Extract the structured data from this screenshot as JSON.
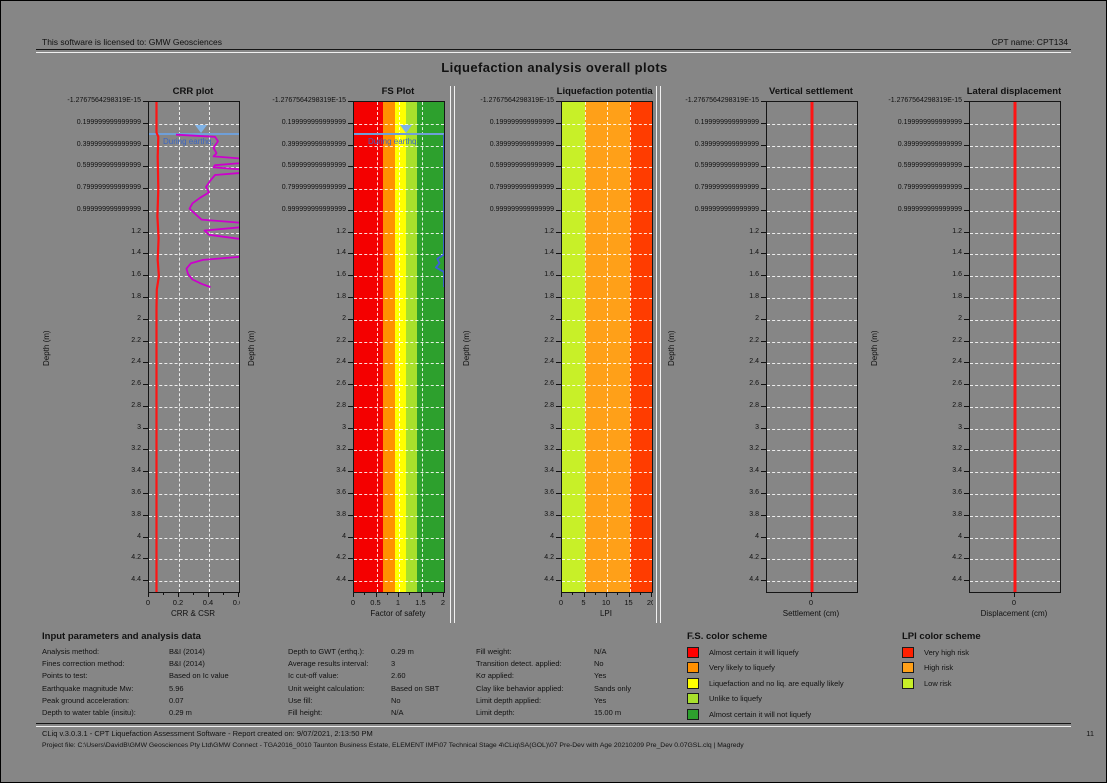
{
  "header": {
    "license": "This software is licensed to: GMW Geosciences",
    "cpt_name": "CPT name: CPT134"
  },
  "title": "Liquefaction analysis overall plots",
  "depth_axis": {
    "label": "Depth (m)",
    "max_depth": 4.5,
    "ticks": [
      "-1.2767564298319E-15",
      "0.199999999999999",
      "0.399999999999999",
      "0.599999999999999",
      "0.799999999999999",
      "0.999999999999999",
      "1.2",
      "1.4",
      "1.6",
      "1.8",
      "2",
      "2.2",
      "2.4",
      "2.6",
      "2.8",
      "3",
      "3.2",
      "3.4",
      "3.6",
      "3.8",
      "4",
      "4.2",
      "4.4"
    ]
  },
  "plots": [
    {
      "key": "crr",
      "title": "CRR plot",
      "xlabel": "CRR & CSR",
      "xmin": 0,
      "xmax": 0.6,
      "xticks": [
        {
          "v": 0,
          "label": "0"
        },
        {
          "v": 0.2,
          "label": "0.2"
        },
        {
          "v": 0.4,
          "label": "0.4"
        },
        {
          "v": 0.6,
          "label": "0.6"
        }
      ],
      "vgrid": [
        0.2,
        0.4
      ],
      "bands": [],
      "water": {
        "depth": 0.29,
        "label": "During earthq."
      },
      "series": [
        {
          "name": "CSR",
          "color": "#ff1414",
          "width": 2.2,
          "points": [
            [
              0,
              0.05
            ],
            [
              0.28,
              0.05
            ],
            [
              0.32,
              0.062
            ],
            [
              0.5,
              0.058
            ],
            [
              0.8,
              0.062
            ],
            [
              1.05,
              0.056
            ],
            [
              1.25,
              0.064
            ],
            [
              1.45,
              0.058
            ],
            [
              1.6,
              0.066
            ],
            [
              1.72,
              0.052
            ],
            [
              1.9,
              0.05
            ],
            [
              4.5,
              0.05
            ]
          ]
        },
        {
          "name": "CRR",
          "color": "#cc00cc",
          "width": 1.8,
          "points": [
            [
              0.3,
              0.18
            ],
            [
              0.32,
              0.44
            ],
            [
              0.36,
              0.46
            ],
            [
              0.42,
              0.43
            ],
            [
              0.47,
              0.45
            ],
            [
              0.5,
              0.43
            ],
            [
              0.52,
              0.62
            ],
            [
              0.56,
              0.62
            ],
            [
              0.58,
              0.44
            ],
            [
              0.6,
              0.43
            ],
            [
              0.62,
              0.62
            ],
            [
              0.65,
              0.62
            ],
            [
              0.67,
              0.44
            ],
            [
              0.72,
              0.41
            ],
            [
              0.78,
              0.38
            ],
            [
              0.83,
              0.4
            ],
            [
              0.88,
              0.34
            ],
            [
              0.93,
              0.29
            ],
            [
              0.98,
              0.27
            ],
            [
              1.03,
              0.31
            ],
            [
              1.08,
              0.35
            ],
            [
              1.11,
              0.62
            ],
            [
              1.15,
              0.62
            ],
            [
              1.18,
              0.37
            ],
            [
              1.22,
              0.4
            ],
            [
              1.26,
              0.62
            ],
            [
              1.42,
              0.62
            ],
            [
              1.45,
              0.36
            ],
            [
              1.48,
              0.28
            ],
            [
              1.53,
              0.25
            ],
            [
              1.58,
              0.26
            ],
            [
              1.63,
              0.29
            ],
            [
              1.67,
              0.35
            ],
            [
              1.7,
              0.41
            ]
          ]
        }
      ]
    },
    {
      "key": "fs",
      "title": "FS Plot",
      "xlabel": "Factor of safety",
      "xmin": 0,
      "xmax": 2,
      "xticks": [
        {
          "v": 0,
          "label": "0"
        },
        {
          "v": 0.5,
          "label": "0.5"
        },
        {
          "v": 1,
          "label": "1"
        },
        {
          "v": 1.5,
          "label": "1.5"
        },
        {
          "v": 2,
          "label": "2"
        }
      ],
      "vgrid": [
        0.5,
        1,
        1.5
      ],
      "bands": [
        {
          "from": 0,
          "to": 0.65,
          "color": "#f40000"
        },
        {
          "from": 0.65,
          "to": 0.9,
          "color": "#ff9000"
        },
        {
          "from": 0.9,
          "to": 1.15,
          "color": "#ffff00"
        },
        {
          "from": 1.15,
          "to": 1.4,
          "color": "#a8e02c"
        },
        {
          "from": 1.4,
          "to": 2,
          "color": "#2da02d"
        }
      ],
      "water": {
        "depth": 0.29,
        "label": "During earthq."
      },
      "series": [
        {
          "name": "FS",
          "color": "#3a5fd9",
          "width": 1.8,
          "points": [
            [
              0.3,
              2
            ],
            [
              1.4,
              2
            ],
            [
              1.44,
              1.85
            ],
            [
              1.48,
              1.9
            ],
            [
              1.52,
              1.82
            ],
            [
              1.56,
              2
            ],
            [
              1.7,
              2
            ]
          ]
        }
      ]
    },
    {
      "key": "lpi",
      "title": "Liquefaction potential",
      "xlabel": "LPI",
      "xmin": 0,
      "xmax": 20,
      "xticks": [
        {
          "v": 0,
          "label": "0"
        },
        {
          "v": 5,
          "label": "5"
        },
        {
          "v": 10,
          "label": "10"
        },
        {
          "v": 15,
          "label": "15"
        },
        {
          "v": 20,
          "label": "20"
        }
      ],
      "vgrid": [
        5,
        10,
        15
      ],
      "bands": [
        {
          "from": 0,
          "to": 5,
          "color": "#c8f028"
        },
        {
          "from": 5,
          "to": 15,
          "color": "#ffa018"
        },
        {
          "from": 15,
          "to": 20,
          "color": "#ff3c00"
        }
      ],
      "water": null,
      "series": []
    },
    {
      "key": "settlement",
      "title": "Vertical settlement",
      "xlabel": "Settlement (cm)",
      "xmin": -1,
      "xmax": 1,
      "xticks": [
        {
          "v": 0,
          "label": "0"
        }
      ],
      "vgrid": [],
      "bands": [],
      "water": null,
      "series": [
        {
          "name": "settlement",
          "color": "#ff1414",
          "width": 3,
          "points": [
            [
              0,
              0
            ],
            [
              4.5,
              0
            ]
          ]
        }
      ]
    },
    {
      "key": "lateral",
      "title": "Lateral displacement",
      "xlabel": "Displacement (cm)",
      "xmin": -1,
      "xmax": 1,
      "xticks": [
        {
          "v": 0,
          "label": "0"
        }
      ],
      "vgrid": [],
      "bands": [],
      "water": null,
      "series": [
        {
          "name": "displacement",
          "color": "#ff1414",
          "width": 3,
          "points": [
            [
              0,
              0
            ],
            [
              4.5,
              0
            ]
          ]
        }
      ]
    }
  ],
  "params": {
    "heading": "Input parameters and analysis data",
    "columns": [
      {
        "rows": [
          {
            "label": "Analysis method:",
            "value": "B&I (2014)"
          },
          {
            "label": "Fines correction method:",
            "value": "B&I (2014)"
          },
          {
            "label": "Points to test:",
            "value": "Based on Ic value"
          },
          {
            "label": "Earthquake magnitude Mw:",
            "value": "5.96"
          },
          {
            "label": "Peak ground acceleration:",
            "value": "0.07"
          },
          {
            "label": "Depth to water table (insitu):",
            "value": "0.29 m"
          }
        ]
      },
      {
        "rows": [
          {
            "label": "Depth to GWT (erthq.):",
            "value": "0.29 m"
          },
          {
            "label": "Average results interval:",
            "value": "3"
          },
          {
            "label": "Ic cut-off value:",
            "value": "2.60"
          },
          {
            "label": "Unit weight calculation:",
            "value": "Based on SBT"
          },
          {
            "label": "Use fill:",
            "value": "No"
          },
          {
            "label": "Fill height:",
            "value": "N/A"
          }
        ]
      },
      {
        "rows": [
          {
            "label": "Fill weight:",
            "value": "N/A"
          },
          {
            "label": "Transition detect. applied:",
            "value": "No"
          },
          {
            "label": "Kσ applied:",
            "value": "Yes"
          },
          {
            "label": "Clay like behavior applied:",
            "value": "Sands only"
          },
          {
            "label": "Limit depth applied:",
            "value": "Yes"
          },
          {
            "label": "Limit depth:",
            "value": "15.00 m"
          }
        ]
      }
    ]
  },
  "fs_scheme": {
    "title": "F.S. color scheme",
    "items": [
      {
        "color": "#ff0000",
        "label": "Almost certain it will liquefy"
      },
      {
        "color": "#ff9000",
        "label": "Very likely to liquefy"
      },
      {
        "color": "#ffff00",
        "label": "Liquefaction and no liq. are equally likely"
      },
      {
        "color": "#a8e02c",
        "label": "Unlike to liquefy"
      },
      {
        "color": "#2da02d",
        "label": "Almost certain it will not liquefy"
      }
    ]
  },
  "lpi_scheme": {
    "title": "LPI color scheme",
    "items": [
      {
        "color": "#ff2000",
        "label": "Very high risk"
      },
      {
        "color": "#ffa018",
        "label": "High risk"
      },
      {
        "color": "#c8f028",
        "label": "Low risk"
      }
    ]
  },
  "footer": {
    "line1": "CLiq v.3.0.3.1 - CPT Liquefaction Assessment Software - Report created on: 9/07/2021, 2:13:50 PM",
    "page": "11",
    "line2": "Project file: C:\\Users\\DavidB\\GMW Geosciences Pty Ltd\\GMW Connect - TGA2016_0010 Taunton Business Estate, ELEMENT IMF\\07 Technical Stage 4\\CLiq\\SA(GOL)\\07 Pre-Dev with Age 20210209 Pre_Dev 0.07GSL.clq | Magredy"
  }
}
